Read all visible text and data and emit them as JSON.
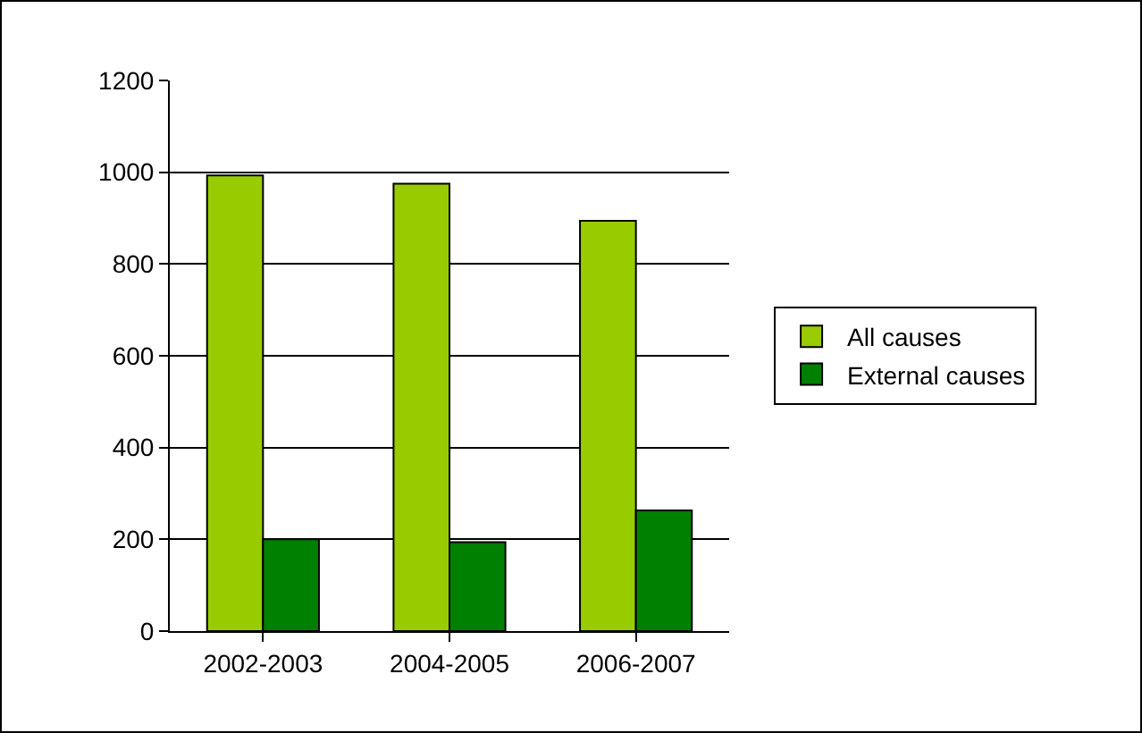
{
  "chart_data": {
    "type": "bar",
    "categories": [
      "2002-2003",
      "2004-2005",
      "2006-2007"
    ],
    "series": [
      {
        "name": "All causes",
        "color": "#99cc00",
        "values": [
          993,
          975,
          894
        ]
      },
      {
        "name": "External causes",
        "color": "#008000",
        "values": [
          200,
          194,
          263
        ]
      }
    ],
    "ylim": [
      0,
      1200
    ],
    "yticks": [
      0,
      200,
      400,
      600,
      800,
      1000,
      1200
    ],
    "grid": "y",
    "legend": "right"
  }
}
